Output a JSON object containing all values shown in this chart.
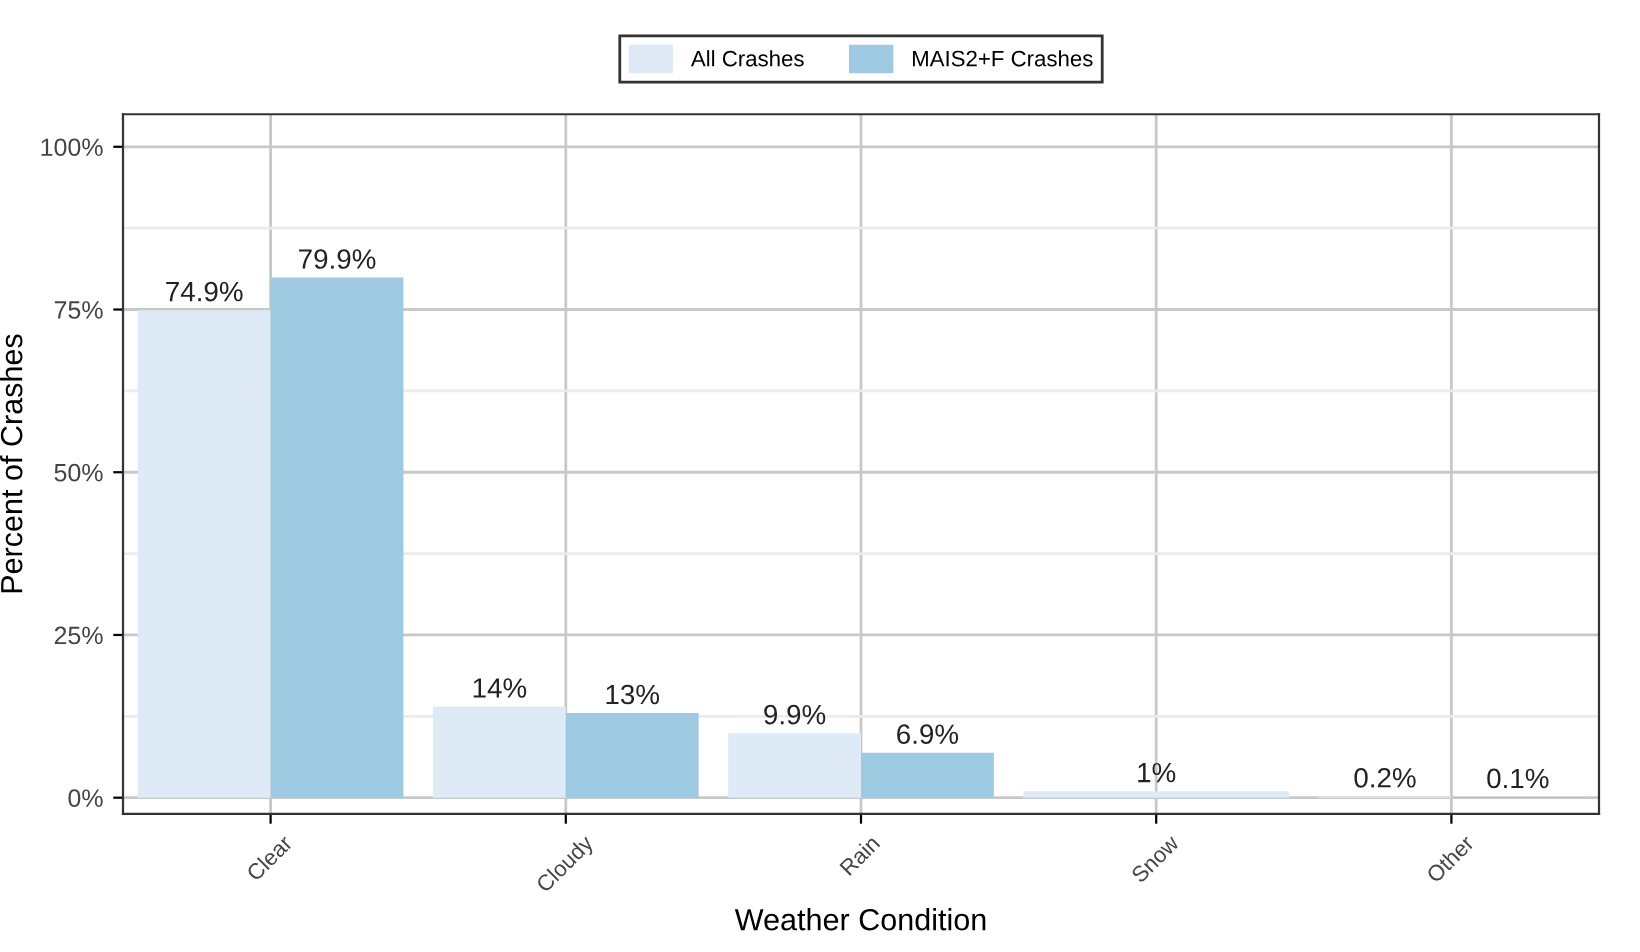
{
  "chart_data": {
    "type": "bar",
    "xlabel": "Weather Condition",
    "ylabel": "Percent of Crashes",
    "categories": [
      "Clear",
      "Cloudy",
      "Rain",
      "Snow",
      "Other"
    ],
    "series": [
      {
        "name": "All Crashes",
        "color": "#deebf7",
        "values": [
          74.9,
          14,
          9.9,
          1,
          0.2
        ],
        "value_labels": [
          "74.9%",
          "14%",
          "9.9%",
          "1%",
          "0.2%"
        ]
      },
      {
        "name": "MAIS2+F Crashes",
        "color": "#9ecae1",
        "values": [
          79.9,
          13,
          6.9,
          null,
          0.1
        ],
        "value_labels": [
          "79.9%",
          "13%",
          "6.9%",
          null,
          "0.1%"
        ]
      }
    ],
    "ylim": [
      -2.5,
      105
    ],
    "yticks": [
      {
        "value": 0,
        "label": "0%"
      },
      {
        "value": 25,
        "label": "25%"
      },
      {
        "value": 50,
        "label": "50%"
      },
      {
        "value": 75,
        "label": "75%"
      },
      {
        "value": 100,
        "label": "100%"
      }
    ],
    "grid": true,
    "legend": "top"
  }
}
